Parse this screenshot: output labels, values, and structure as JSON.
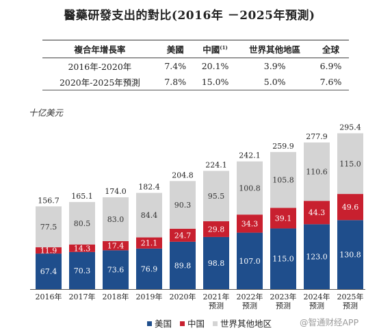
{
  "title": "醫藥研發支出的對比(2016年 －2025年預測)",
  "cagr_table": {
    "headers": [
      "複合年增長率",
      "美國",
      "中國",
      "世界其他地區",
      "全球"
    ],
    "header_note": "(1)",
    "rows": [
      [
        "2016年-2020年",
        "7.4%",
        "20.1%",
        "3.9%",
        "6.9%"
      ],
      [
        "2020年-2025年預測",
        "7.8%",
        "15.0%",
        "5.0%",
        "7.6%"
      ]
    ]
  },
  "chart_data": {
    "type": "bar",
    "stacked": true,
    "unit_label": "十亿美元",
    "categories": [
      "2016年",
      "2017年",
      "2018年",
      "2019年",
      "2020年",
      "2021年\n预测",
      "2022年\n预测",
      "2023年\n预测",
      "2024年\n预测",
      "2025年\n预测"
    ],
    "series": [
      {
        "name": "美国",
        "color": "#1f4e8c",
        "values": [
          67.4,
          70.3,
          73.6,
          76.9,
          89.8,
          98.8,
          107.0,
          115.0,
          123.0,
          130.8
        ]
      },
      {
        "name": "中国",
        "color": "#c8202f",
        "values": [
          11.9,
          14.3,
          17.4,
          21.1,
          24.7,
          29.8,
          34.3,
          39.1,
          44.3,
          49.6
        ]
      },
      {
        "name": "世界其他地区",
        "color": "#d4d4d4",
        "values": [
          77.5,
          80.5,
          83.0,
          84.4,
          90.3,
          95.5,
          100.8,
          105.8,
          110.6,
          115.0
        ]
      }
    ],
    "totals": [
      156.7,
      165.1,
      174.0,
      182.4,
      204.8,
      224.1,
      242.1,
      259.9,
      277.9,
      295.4
    ],
    "value_labels": {
      "美国": [
        "67.4",
        "70.3",
        "73.6",
        "76.9",
        "89.8",
        "98.8",
        "107.0",
        "115.0",
        "123.0",
        "130.8"
      ],
      "中国": [
        "11.9",
        "14.3",
        "17.4",
        "21.1",
        "24.7",
        "29.8",
        "34.3",
        "39.1",
        "44.3",
        "49.6"
      ],
      "世界其他地区": [
        "77.5",
        "80.5",
        "83.0",
        "84.4",
        "90.3",
        "95.5",
        "100.8",
        "105.8",
        "110.6",
        "115.0"
      ],
      "totals": [
        "156.7",
        "165.1",
        "174.0",
        "182.4",
        "204.8",
        "224.1",
        "242.1",
        "259.9",
        "277.9",
        "295.4"
      ]
    },
    "legend_position": "bottom",
    "grid": false
  },
  "watermark": "@智通财经APP"
}
